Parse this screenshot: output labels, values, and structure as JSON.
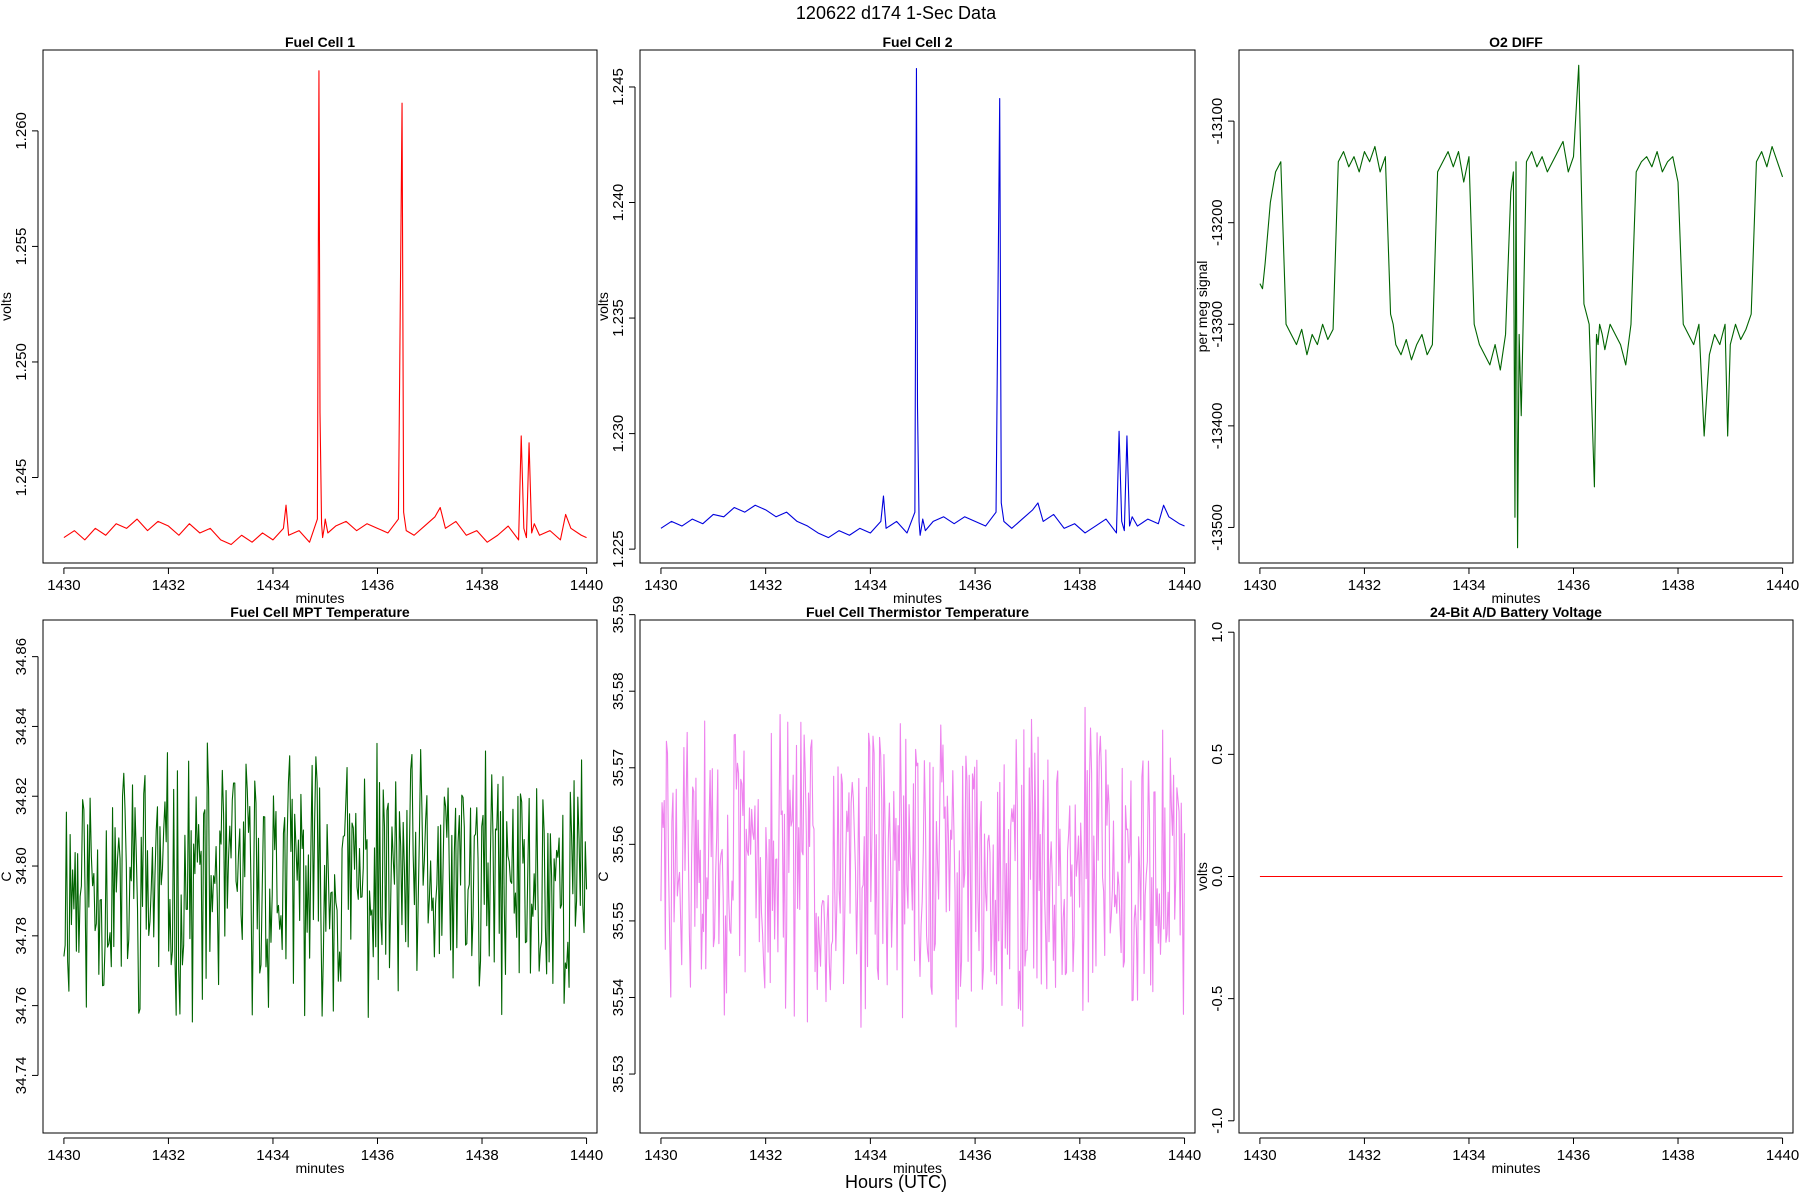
{
  "figure": {
    "title": "120622   d174   1-Sec Data",
    "xlabel": "Hours (UTC)"
  },
  "chart_data": [
    {
      "type": "line",
      "title": "Fuel Cell 1",
      "xlabel": "minutes",
      "ylabel": "volts",
      "color": "#ff0000",
      "xlim": [
        1429.6,
        1440.2
      ],
      "ylim": [
        1.2413,
        1.2635
      ],
      "xticks": [
        1430,
        1432,
        1434,
        1436,
        1438,
        1440
      ],
      "yticks": [
        1.245,
        1.25,
        1.255,
        1.26
      ],
      "ytick_labels": [
        "1.245",
        "1.250",
        "1.255",
        "1.260"
      ],
      "series": [
        {
          "x": [
            1430.0,
            1430.2,
            1430.4,
            1430.6,
            1430.8,
            1431.0,
            1431.2,
            1431.4,
            1431.6,
            1431.8,
            1432.0,
            1432.2,
            1432.4,
            1432.6,
            1432.8,
            1433.0,
            1433.2,
            1433.4,
            1433.6,
            1433.8,
            1434.0,
            1434.2,
            1434.25,
            1434.3,
            1434.5,
            1434.7,
            1434.85,
            1434.88,
            1434.9,
            1434.93,
            1434.95,
            1434.98,
            1435.0,
            1435.05,
            1435.2,
            1435.4,
            1435.6,
            1435.8,
            1436.0,
            1436.2,
            1436.4,
            1436.47,
            1436.5,
            1436.55,
            1436.7,
            1436.9,
            1437.1,
            1437.2,
            1437.3,
            1437.5,
            1437.7,
            1437.9,
            1438.1,
            1438.3,
            1438.5,
            1438.7,
            1438.75,
            1438.8,
            1438.85,
            1438.9,
            1438.95,
            1439.0,
            1439.1,
            1439.3,
            1439.5,
            1439.6,
            1439.7,
            1439.9,
            1440.0
          ],
          "y": [
            1.2424,
            1.2427,
            1.2423,
            1.2428,
            1.2425,
            1.243,
            1.2428,
            1.2432,
            1.2427,
            1.2431,
            1.2429,
            1.2425,
            1.243,
            1.2426,
            1.2428,
            1.2423,
            1.2421,
            1.2425,
            1.2422,
            1.2426,
            1.2423,
            1.2428,
            1.2438,
            1.2425,
            1.2427,
            1.2422,
            1.2432,
            1.2626,
            1.2478,
            1.243,
            1.2424,
            1.2428,
            1.2432,
            1.2426,
            1.2429,
            1.2431,
            1.2427,
            1.243,
            1.2428,
            1.2426,
            1.2432,
            1.2612,
            1.2435,
            1.2427,
            1.2425,
            1.2429,
            1.2433,
            1.2437,
            1.2428,
            1.2431,
            1.2425,
            1.2427,
            1.2422,
            1.2425,
            1.2429,
            1.2423,
            1.2468,
            1.2428,
            1.2424,
            1.2465,
            1.2426,
            1.243,
            1.2425,
            1.2427,
            1.2423,
            1.2434,
            1.2428,
            1.2425,
            1.2424
          ]
        }
      ]
    },
    {
      "type": "line",
      "title": "Fuel Cell 2",
      "xlabel": "minutes",
      "ylabel": "volts",
      "color": "#0000dd",
      "xlim": [
        1429.6,
        1440.2
      ],
      "ylim": [
        1.2244,
        1.2466
      ],
      "xticks": [
        1430,
        1432,
        1434,
        1436,
        1438,
        1440
      ],
      "yticks": [
        1.225,
        1.23,
        1.235,
        1.24,
        1.245
      ],
      "ytick_labels": [
        "1.225",
        "1.230",
        "1.235",
        "1.240",
        "1.245"
      ],
      "series": [
        {
          "x": [
            1430.0,
            1430.2,
            1430.4,
            1430.6,
            1430.8,
            1431.0,
            1431.2,
            1431.4,
            1431.6,
            1431.8,
            1432.0,
            1432.2,
            1432.4,
            1432.6,
            1432.8,
            1433.0,
            1433.2,
            1433.4,
            1433.6,
            1433.8,
            1434.0,
            1434.2,
            1434.25,
            1434.3,
            1434.5,
            1434.7,
            1434.85,
            1434.88,
            1434.9,
            1434.93,
            1434.95,
            1434.98,
            1435.0,
            1435.05,
            1435.2,
            1435.4,
            1435.6,
            1435.8,
            1436.0,
            1436.2,
            1436.4,
            1436.47,
            1436.5,
            1436.55,
            1436.7,
            1436.9,
            1437.1,
            1437.2,
            1437.3,
            1437.5,
            1437.7,
            1437.9,
            1438.1,
            1438.3,
            1438.5,
            1438.7,
            1438.75,
            1438.8,
            1438.85,
            1438.9,
            1438.95,
            1439.0,
            1439.1,
            1439.3,
            1439.5,
            1439.6,
            1439.7,
            1439.9,
            1440.0
          ],
          "y": [
            1.2259,
            1.2262,
            1.226,
            1.2263,
            1.2261,
            1.2265,
            1.2264,
            1.2268,
            1.2266,
            1.2269,
            1.2267,
            1.2264,
            1.2266,
            1.2262,
            1.226,
            1.2257,
            1.2255,
            1.2258,
            1.2256,
            1.2259,
            1.2257,
            1.2262,
            1.2273,
            1.2259,
            1.2262,
            1.2257,
            1.2266,
            1.2458,
            1.2312,
            1.2262,
            1.2256,
            1.226,
            1.2263,
            1.2258,
            1.2262,
            1.2264,
            1.2261,
            1.2264,
            1.2262,
            1.226,
            1.2266,
            1.2445,
            1.227,
            1.2262,
            1.2259,
            1.2263,
            1.2267,
            1.227,
            1.2262,
            1.2265,
            1.2259,
            1.2261,
            1.2257,
            1.226,
            1.2263,
            1.2257,
            1.2301,
            1.2262,
            1.2258,
            1.2299,
            1.226,
            1.2264,
            1.226,
            1.2263,
            1.2261,
            1.2269,
            1.2264,
            1.2261,
            1.226
          ]
        }
      ]
    },
    {
      "type": "line",
      "title": "O2 DIFF",
      "xlabel": "minutes",
      "ylabel": "per meg signal",
      "color": "#006400",
      "xlim": [
        1429.6,
        1440.2
      ],
      "ylim": [
        -13535,
        -13030
      ],
      "xticks": [
        1430,
        1432,
        1434,
        1436,
        1438,
        1440
      ],
      "yticks": [
        -13500,
        -13400,
        -13300,
        -13200,
        -13100
      ],
      "ytick_labels": [
        "-13500",
        "-13400",
        "-13300",
        "-13200",
        "-13100"
      ],
      "series": [
        {
          "x": [
            1430.0,
            1430.05,
            1430.1,
            1430.2,
            1430.3,
            1430.4,
            1430.5,
            1430.6,
            1430.7,
            1430.8,
            1430.9,
            1431.0,
            1431.1,
            1431.2,
            1431.3,
            1431.4,
            1431.5,
            1431.6,
            1431.7,
            1431.8,
            1431.9,
            1432.0,
            1432.1,
            1432.2,
            1432.3,
            1432.4,
            1432.5,
            1432.55,
            1432.6,
            1432.7,
            1432.8,
            1432.9,
            1433.0,
            1433.1,
            1433.2,
            1433.3,
            1433.4,
            1433.5,
            1433.6,
            1433.7,
            1433.8,
            1433.9,
            1434.0,
            1434.1,
            1434.2,
            1434.3,
            1434.4,
            1434.5,
            1434.6,
            1434.7,
            1434.8,
            1434.85,
            1434.88,
            1434.9,
            1434.93,
            1434.96,
            1435.0,
            1435.1,
            1435.2,
            1435.3,
            1435.4,
            1435.5,
            1435.6,
            1435.7,
            1435.8,
            1435.9,
            1436.0,
            1436.1,
            1436.2,
            1436.3,
            1436.4,
            1436.44,
            1436.47,
            1436.5,
            1436.55,
            1436.6,
            1436.7,
            1436.8,
            1436.9,
            1437.0,
            1437.1,
            1437.2,
            1437.3,
            1437.4,
            1437.5,
            1437.6,
            1437.7,
            1437.8,
            1437.9,
            1438.0,
            1438.1,
            1438.2,
            1438.3,
            1438.4,
            1438.5,
            1438.6,
            1438.7,
            1438.8,
            1438.9,
            1438.95,
            1439.0,
            1439.1,
            1439.2,
            1439.3,
            1439.4,
            1439.5,
            1439.6,
            1439.7,
            1439.8,
            1439.9,
            1440.0
          ],
          "y": [
            -13260,
            -13265,
            -13240,
            -13180,
            -13150,
            -13140,
            -13300,
            -13310,
            -13320,
            -13305,
            -13330,
            -13310,
            -13320,
            -13300,
            -13315,
            -13305,
            -13140,
            -13130,
            -13145,
            -13135,
            -13150,
            -13130,
            -13140,
            -13125,
            -13150,
            -13135,
            -13290,
            -13300,
            -13320,
            -13330,
            -13315,
            -13335,
            -13320,
            -13310,
            -13330,
            -13320,
            -13150,
            -13140,
            -13130,
            -13145,
            -13130,
            -13160,
            -13135,
            -13300,
            -13320,
            -13330,
            -13340,
            -13320,
            -13345,
            -13310,
            -13170,
            -13150,
            -13490,
            -13140,
            -13520,
            -13310,
            -13390,
            -13140,
            -13130,
            -13145,
            -13135,
            -13150,
            -13140,
            -13130,
            -13120,
            -13150,
            -13135,
            -13045,
            -13280,
            -13300,
            -13460,
            -13310,
            -13320,
            -13300,
            -13310,
            -13325,
            -13300,
            -13310,
            -13320,
            -13340,
            -13300,
            -13150,
            -13140,
            -13135,
            -13145,
            -13130,
            -13150,
            -13140,
            -13135,
            -13160,
            -13300,
            -13310,
            -13320,
            -13300,
            -13410,
            -13330,
            -13310,
            -13320,
            -13300,
            -13410,
            -13320,
            -13300,
            -13315,
            -13305,
            -13290,
            -13140,
            -13130,
            -13145,
            -13125,
            -13140,
            -13155
          ]
        }
      ]
    },
    {
      "type": "line",
      "title": "Fuel Cell MPT Temperature",
      "xlabel": "minutes",
      "ylabel": "C",
      "color": "#006400",
      "xlim": [
        1429.6,
        1440.2
      ],
      "ylim": [
        34.7235,
        34.8705
      ],
      "xticks": [
        1430,
        1432,
        1434,
        1436,
        1438,
        1440
      ],
      "yticks": [
        34.74,
        34.76,
        34.78,
        34.8,
        34.82,
        34.84,
        34.86
      ],
      "ytick_labels": [
        "34.74",
        "34.76",
        "34.78",
        "34.80",
        "34.82",
        "34.84",
        "34.86"
      ],
      "series": [
        {
          "gen": "noise",
          "n": 420,
          "seed": 11,
          "base": 34.795,
          "amp": 0.032,
          "min": 34.73,
          "max": 34.861
        }
      ]
    },
    {
      "type": "line",
      "title": "Fuel Cell Thermistor Temperature",
      "xlabel": "minutes",
      "ylabel": "C",
      "color": "#ee82ee",
      "xlim": [
        1429.6,
        1440.2
      ],
      "ylim": [
        35.5223,
        35.5893
      ],
      "xticks": [
        1430,
        1432,
        1434,
        1436,
        1438,
        1440
      ],
      "yticks": [
        35.53,
        35.54,
        35.55,
        35.56,
        35.57,
        35.58,
        35.59
      ],
      "ytick_labels": [
        "35.53",
        "35.54",
        "35.55",
        "35.56",
        "35.57",
        "35.58",
        "35.59"
      ],
      "series": [
        {
          "gen": "noise",
          "n": 480,
          "seed": 29,
          "base": 35.557,
          "amp": 0.017,
          "min": 35.524,
          "max": 35.588
        }
      ]
    },
    {
      "type": "line",
      "title": "24-Bit A/D Battery Voltage",
      "xlabel": "minutes",
      "ylabel": "volts",
      "color": "#ff0000",
      "xlim": [
        1429.6,
        1440.2
      ],
      "ylim": [
        -1.05,
        1.05
      ],
      "xticks": [
        1430,
        1432,
        1434,
        1436,
        1438,
        1440
      ],
      "yticks": [
        -1.0,
        -0.5,
        0.0,
        0.5,
        1.0
      ],
      "ytick_labels": [
        "-1.0",
        "-0.5",
        "0.0",
        "0.5",
        "1.0"
      ],
      "series": [
        {
          "x": [
            1430,
            1440
          ],
          "y": [
            0,
            0
          ]
        }
      ]
    }
  ]
}
